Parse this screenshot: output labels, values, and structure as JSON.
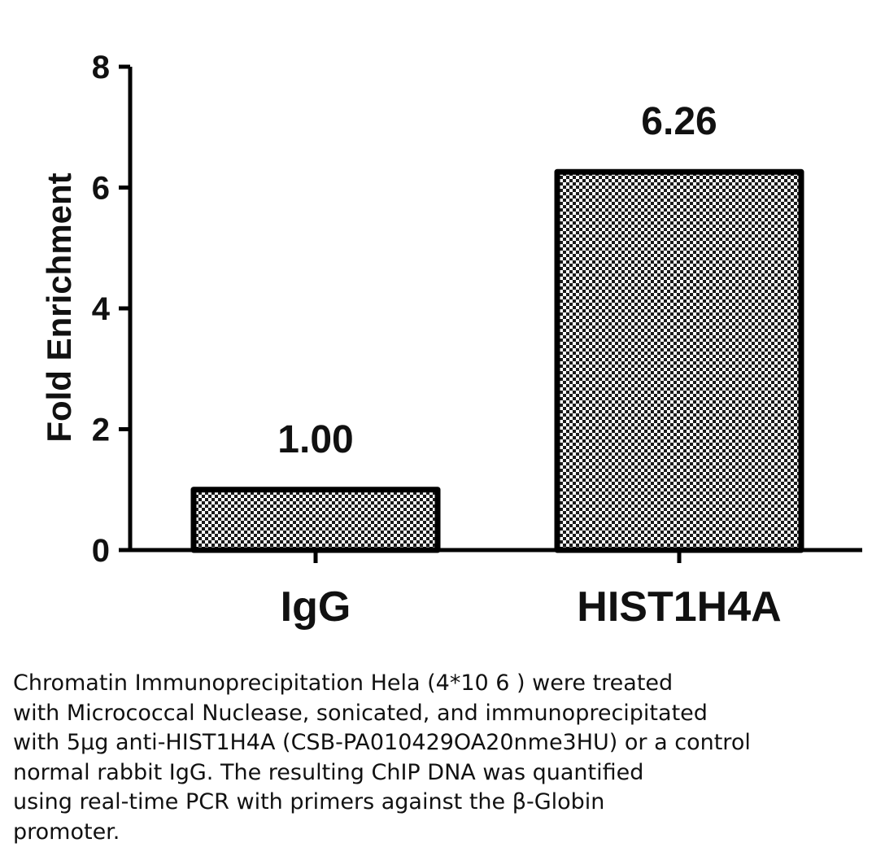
{
  "chart_data": {
    "type": "bar",
    "categories": [
      "IgG",
      "HIST1H4A"
    ],
    "values": [
      1.0,
      6.26
    ],
    "data_labels": [
      "1.00",
      "6.26"
    ],
    "title": "",
    "xlabel": "",
    "ylabel": "Fold Enrichment",
    "ylim": [
      0,
      8
    ],
    "yticks": [
      0,
      2,
      4,
      6,
      8
    ],
    "ytick_labels": [
      "0",
      "2",
      "4",
      "6",
      "8"
    ],
    "grid": false,
    "legend": "none",
    "bar_fill": "black-white checkered pattern",
    "bar_stroke": "#000000"
  },
  "caption": {
    "lines": [
      "Chromatin Immunoprecipitation Hela (4*10 6 ) were treated",
      "with Micrococcal Nuclease, sonicated, and immunoprecipitated",
      "with 5μg anti-HIST1H4A (CSB-PA010429OA20nme3HU) or a control",
      "normal rabbit IgG. The resulting ChIP DNA was quantified",
      "using real-time PCR with primers against the β-Globin",
      "promoter."
    ]
  }
}
